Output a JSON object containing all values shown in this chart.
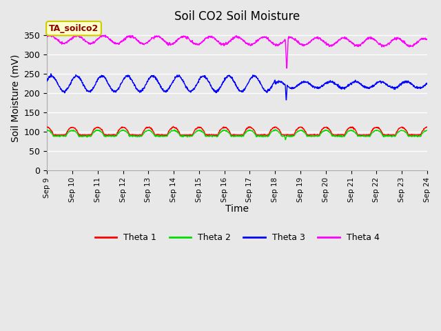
{
  "title": "Soil CO2 Soil Moisture",
  "xlabel": "Time",
  "ylabel": "Soil Moisture (mV)",
  "annotation": "TA_soilco2",
  "ylim": [
    0,
    375
  ],
  "yticks": [
    0,
    50,
    100,
    150,
    200,
    250,
    300,
    350
  ],
  "xstart_day": 9,
  "xend_day": 24,
  "colors": {
    "theta1": "#FF0000",
    "theta2": "#00DD00",
    "theta3": "#0000FF",
    "theta4": "#FF00FF"
  },
  "legend_labels": [
    "Theta 1",
    "Theta 2",
    "Theta 3",
    "Theta 4"
  ],
  "plot_bg_color": "#E8E8E8",
  "fig_bg_color": "#E8E8E8",
  "grid_color": "#FFFFFF",
  "annotation_fg": "#8B0000",
  "annotation_bg": "#FFFFCC",
  "annotation_edge": "#CCCC00"
}
